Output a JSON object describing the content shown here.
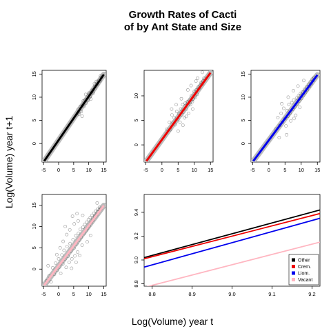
{
  "chart_data": {
    "type": "scatter",
    "title": [
      "Growth Rates of Cacti",
      "of by Ant State and Size"
    ],
    "xlabel": "Log(Volume) year t",
    "ylabel": "Log(Volume) year t+1",
    "panels": [
      {
        "name": "other",
        "color": "#000000",
        "band_color": "#bbbbbb",
        "xlim": [
          -5.5,
          15.8
        ],
        "ylim": [
          -4.0,
          15.8
        ],
        "xticks": [
          -5,
          0,
          5,
          10,
          15
        ],
        "yticks": [
          0,
          5,
          10,
          15
        ],
        "xtick_labels": [
          "-5",
          "0",
          "5",
          "10",
          "15"
        ],
        "ytick_labels": [
          "0",
          "5",
          "10",
          "15"
        ],
        "line": {
          "x": [
            -4.8,
            15.0
          ],
          "y": [
            -3.8,
            14.9
          ]
        },
        "points": [
          [
            6.2,
            6.5
          ],
          [
            6.8,
            6.3
          ],
          [
            7.2,
            8.0
          ],
          [
            7.5,
            6.9
          ],
          [
            8.0,
            8.3
          ],
          [
            8.4,
            8.0
          ],
          [
            8.8,
            9.4
          ],
          [
            9.1,
            8.7
          ],
          [
            9.5,
            9.9
          ],
          [
            9.8,
            9.3
          ],
          [
            10.2,
            10.6
          ],
          [
            10.5,
            10.1
          ],
          [
            10.9,
            11.0
          ],
          [
            11.2,
            11.5
          ],
          [
            11.6,
            11.2
          ],
          [
            12.0,
            12.3
          ],
          [
            12.3,
            11.9
          ],
          [
            12.7,
            12.8
          ],
          [
            13.0,
            12.7
          ],
          [
            13.4,
            13.6
          ],
          [
            13.8,
            13.5
          ],
          [
            14.2,
            14.3
          ],
          [
            7.8,
            5.9
          ],
          [
            9.0,
            10.6
          ],
          [
            10.7,
            9.6
          ],
          [
            11.9,
            12.9
          ],
          [
            8.2,
            9.2
          ],
          [
            12.5,
            13.4
          ],
          [
            6.5,
            7.4
          ],
          [
            13.9,
            14.6
          ],
          [
            10.0,
            10.9
          ],
          [
            11.4,
            10.8
          ]
        ]
      },
      {
        "name": "crem",
        "color": "#ee0000",
        "band_color": "#bbbbbb",
        "xlim": [
          -5.5,
          15.8
        ],
        "ylim": [
          -3.5,
          15.2
        ],
        "xticks": [
          -5,
          0,
          5,
          10,
          15
        ],
        "yticks": [
          0,
          5,
          10
        ],
        "xtick_labels": [
          "-5",
          "0",
          "5",
          "10",
          "15"
        ],
        "ytick_labels": [
          "0",
          "5",
          "10"
        ],
        "line": {
          "x": [
            -4.8,
            15.0
          ],
          "y": [
            -3.3,
            14.7
          ]
        },
        "points": [
          [
            1.5,
            3.2
          ],
          [
            2.3,
            4.6
          ],
          [
            2.6,
            3.1
          ],
          [
            3.1,
            6.1
          ],
          [
            3.4,
            4.6
          ],
          [
            3.8,
            5.5
          ],
          [
            4.1,
            4.1
          ],
          [
            4.6,
            6.8
          ],
          [
            4.9,
            5.3
          ],
          [
            5.2,
            6.4
          ],
          [
            5.6,
            4.6
          ],
          [
            5.8,
            7.3
          ],
          [
            6.1,
            6.1
          ],
          [
            6.4,
            8.2
          ],
          [
            6.7,
            6.7
          ],
          [
            7.0,
            5.5
          ],
          [
            7.2,
            8.5
          ],
          [
            7.6,
            7.3
          ],
          [
            7.9,
            8.8
          ],
          [
            8.2,
            6.4
          ],
          [
            8.5,
            9.1
          ],
          [
            8.8,
            8.2
          ],
          [
            9.1,
            10.0
          ],
          [
            9.4,
            8.8
          ],
          [
            9.7,
            9.4
          ],
          [
            10.0,
            10.9
          ],
          [
            10.3,
            9.7
          ],
          [
            10.6,
            11.2
          ],
          [
            10.9,
            10.3
          ],
          [
            11.2,
            11.8
          ],
          [
            11.5,
            11.5
          ],
          [
            11.8,
            12.1
          ],
          [
            12.1,
            12.7
          ],
          [
            12.4,
            12.4
          ],
          [
            12.7,
            13.0
          ],
          [
            13.0,
            13.6
          ],
          [
            9.0,
            12.1
          ],
          [
            10.5,
            13.0
          ],
          [
            6.0,
            9.4
          ],
          [
            8.0,
            11.2
          ],
          [
            11.0,
            13.6
          ],
          [
            12.5,
            14.8
          ],
          [
            5.0,
            2.8
          ],
          [
            6.5,
            4.0
          ],
          [
            7.5,
            5.8
          ],
          [
            9.5,
            7.3
          ],
          [
            3.0,
            7.3
          ],
          [
            4.4,
            8.2
          ]
        ]
      },
      {
        "name": "liom",
        "color": "#0000ee",
        "band_color": "#bbbbbb",
        "xlim": [
          -5.5,
          15.8
        ],
        "ylim": [
          -4.0,
          15.8
        ],
        "xticks": [
          -5,
          0,
          5,
          10,
          15
        ],
        "yticks": [
          0,
          5,
          10,
          15
        ],
        "xtick_labels": [
          "-5",
          "0",
          "5",
          "10",
          "15"
        ],
        "ytick_labels": [
          "0",
          "5",
          "10",
          "15"
        ],
        "line": {
          "x": [
            -4.8,
            15.0
          ],
          "y": [
            -3.8,
            14.8
          ]
        },
        "points": [
          [
            2.1,
            3.1
          ],
          [
            2.8,
            5.6
          ],
          [
            3.4,
            3.9
          ],
          [
            3.8,
            6.5
          ],
          [
            4.2,
            4.6
          ],
          [
            4.6,
            7.6
          ],
          [
            5.0,
            5.4
          ],
          [
            5.3,
            3.8
          ],
          [
            5.6,
            7.1
          ],
          [
            5.9,
            5.9
          ],
          [
            6.2,
            8.4
          ],
          [
            6.5,
            6.5
          ],
          [
            6.8,
            4.9
          ],
          [
            7.1,
            8.8
          ],
          [
            7.4,
            7.4
          ],
          [
            7.7,
            9.4
          ],
          [
            8.0,
            7.9
          ],
          [
            8.3,
            6.1
          ],
          [
            8.6,
            9.8
          ],
          [
            8.9,
            8.5
          ],
          [
            9.2,
            10.3
          ],
          [
            9.5,
            9.2
          ],
          [
            9.8,
            10.8
          ],
          [
            10.1,
            9.7
          ],
          [
            10.4,
            11.1
          ],
          [
            10.7,
            10.4
          ],
          [
            11.0,
            11.7
          ],
          [
            11.3,
            11.0
          ],
          [
            11.6,
            12.2
          ],
          [
            11.9,
            11.6
          ],
          [
            12.2,
            12.8
          ],
          [
            12.5,
            12.3
          ],
          [
            12.8,
            13.3
          ],
          [
            13.1,
            12.9
          ],
          [
            13.4,
            13.9
          ],
          [
            13.7,
            13.6
          ],
          [
            14.0,
            14.3
          ],
          [
            6.0,
            10.0
          ],
          [
            7.6,
            11.4
          ],
          [
            9.0,
            12.4
          ],
          [
            10.8,
            13.6
          ],
          [
            4.0,
            8.6
          ],
          [
            7.8,
            5.4
          ],
          [
            9.6,
            7.8
          ],
          [
            5.5,
            1.9
          ],
          [
            3.2,
            1.3
          ]
        ]
      },
      {
        "name": "vacant",
        "color": "#ffb6c1",
        "band_color": "#bbbbbb",
        "xlim": [
          -5.5,
          15.8
        ],
        "ylim": [
          -4.0,
          17.5
        ],
        "xticks": [
          -5,
          0,
          5,
          10,
          15
        ],
        "yticks": [
          0,
          5,
          10,
          15
        ],
        "xtick_labels": [
          "-5",
          "0",
          "5",
          "10",
          "15"
        ],
        "ytick_labels": [
          "0",
          "5",
          "10",
          "15"
        ],
        "line": {
          "x": [
            -4.8,
            15.0
          ],
          "y": [
            -3.8,
            14.9
          ]
        },
        "points": [
          [
            -4.0,
            -2.8
          ],
          [
            -3.2,
            -1.6
          ],
          [
            -2.5,
            -3.0
          ],
          [
            -2.0,
            0.3
          ],
          [
            -1.4,
            -1.2
          ],
          [
            -1.0,
            1.4
          ],
          [
            -0.5,
            -0.3
          ],
          [
            0.0,
            2.4
          ],
          [
            0.3,
            0.5
          ],
          [
            0.7,
            -1.0
          ],
          [
            1.1,
            3.3
          ],
          [
            1.4,
            1.2
          ],
          [
            1.8,
            4.4
          ],
          [
            2.1,
            2.3
          ],
          [
            2.5,
            0.4
          ],
          [
            2.8,
            5.3
          ],
          [
            3.1,
            3.0
          ],
          [
            3.5,
            1.6
          ],
          [
            3.8,
            6.0
          ],
          [
            4.1,
            4.2
          ],
          [
            4.4,
            2.4
          ],
          [
            4.8,
            6.9
          ],
          [
            5.1,
            4.9
          ],
          [
            5.4,
            3.1
          ],
          [
            5.7,
            7.8
          ],
          [
            6.0,
            5.9
          ],
          [
            6.3,
            4.0
          ],
          [
            6.6,
            8.4
          ],
          [
            6.9,
            6.8
          ],
          [
            7.2,
            9.3
          ],
          [
            7.5,
            7.5
          ],
          [
            7.8,
            5.6
          ],
          [
            8.1,
            9.8
          ],
          [
            8.4,
            8.3
          ],
          [
            8.7,
            10.5
          ],
          [
            9.0,
            9.0
          ],
          [
            9.3,
            11.0
          ],
          [
            9.6,
            9.6
          ],
          [
            9.9,
            11.6
          ],
          [
            10.2,
            10.2
          ],
          [
            10.5,
            12.1
          ],
          [
            10.8,
            10.9
          ],
          [
            11.1,
            12.6
          ],
          [
            11.4,
            11.5
          ],
          [
            11.7,
            13.1
          ],
          [
            12.0,
            12.2
          ],
          [
            12.3,
            13.6
          ],
          [
            12.6,
            12.7
          ],
          [
            12.9,
            14.0
          ],
          [
            13.2,
            13.4
          ],
          [
            13.6,
            14.5
          ],
          [
            14.0,
            14.1
          ],
          [
            0.5,
            5.0
          ],
          [
            1.5,
            6.5
          ],
          [
            2.7,
            8.1
          ],
          [
            3.7,
            9.2
          ],
          [
            5.2,
            10.6
          ],
          [
            6.5,
            11.3
          ],
          [
            8.0,
            12.6
          ],
          [
            -0.6,
            3.4
          ],
          [
            4.3,
            0.2
          ],
          [
            5.8,
            1.6
          ],
          [
            7.0,
            3.2
          ],
          [
            9.5,
            6.4
          ],
          [
            -3.5,
            0.8
          ],
          [
            10.6,
            7.9
          ],
          [
            4.6,
            12.4
          ],
          [
            6.1,
            13.0
          ],
          [
            2.2,
            10.0
          ],
          [
            12.8,
            15.5
          ]
        ]
      }
    ],
    "zoom": {
      "xlim": [
        8.78,
        9.22
      ],
      "ylim": [
        8.78,
        9.55
      ],
      "xticks": [
        8.8,
        8.9,
        9.0,
        9.1,
        9.2
      ],
      "yticks": [
        8.8,
        9.0,
        9.2,
        9.4
      ],
      "xtick_labels": [
        "8.8",
        "8.9",
        "9.0",
        "9.1",
        "9.2"
      ],
      "ytick_labels": [
        "8.8",
        "9.0",
        "9.2",
        "9.4"
      ],
      "series": [
        {
          "name": "Other",
          "color": "#000000",
          "x": [
            8.78,
            9.22
          ],
          "y": [
            9.02,
            9.42
          ]
        },
        {
          "name": "Crem.",
          "color": "#ee0000",
          "x": [
            8.78,
            9.22
          ],
          "y": [
            9.01,
            9.39
          ]
        },
        {
          "name": "Liom.",
          "color": "#0000ee",
          "x": [
            8.78,
            9.22
          ],
          "y": [
            8.94,
            9.35
          ]
        },
        {
          "name": "Vacant",
          "color": "#ffb6c1",
          "x": [
            8.78,
            9.22
          ],
          "y": [
            8.77,
            9.15
          ]
        }
      ],
      "legend_position": "bottom-right"
    }
  }
}
